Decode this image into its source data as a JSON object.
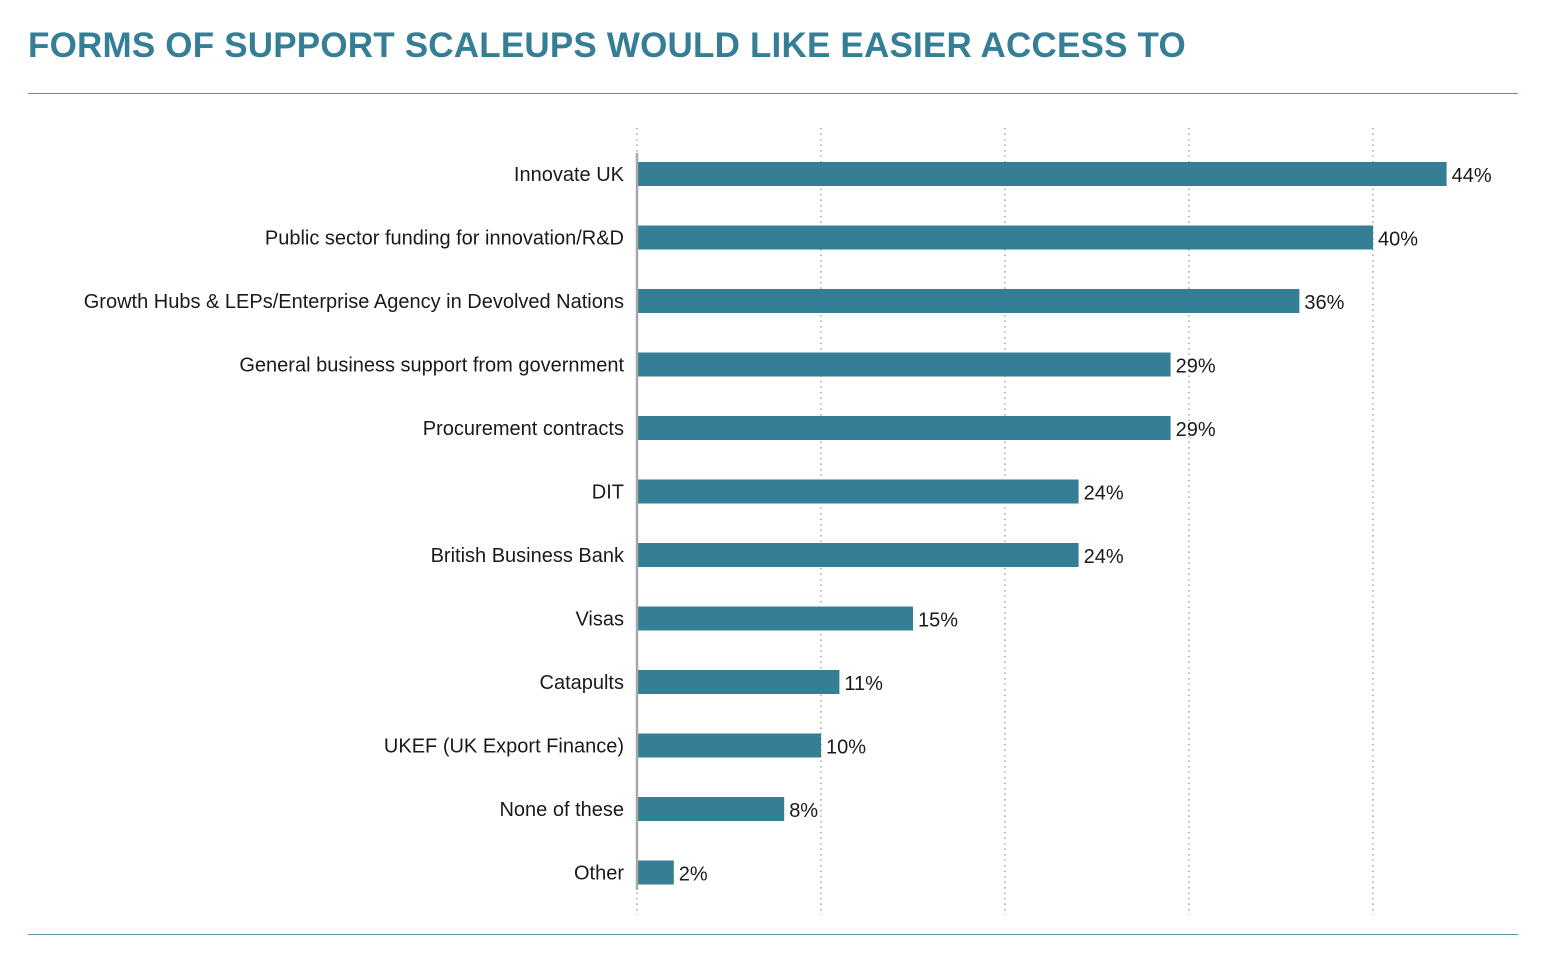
{
  "title": "FORMS OF SUPPORT SCALEUPS WOULD LIKE EASIER ACCESS TO",
  "colors": {
    "accent": "#357f96",
    "bar": "#357f96",
    "rule": "#5b93a6",
    "gridline": "#9a9a9a",
    "axis": "#a8a8a8",
    "text": "#1a1a1a"
  },
  "chart_data": {
    "type": "bar",
    "orientation": "horizontal",
    "categories": [
      "Innovate UK",
      "Public sector funding for innovation/R&D",
      "Growth Hubs & LEPs/Enterprise Agency in Devolved Nations",
      "General business support from government",
      "Procurement contracts",
      "DIT",
      "British Business Bank",
      "Visas",
      "Catapults",
      "UKEF (UK Export Finance)",
      "None of these",
      "Other"
    ],
    "values": [
      44,
      40,
      36,
      29,
      29,
      24,
      24,
      15,
      11,
      10,
      8,
      2
    ],
    "value_labels": [
      "44%",
      "40%",
      "36%",
      "29%",
      "29%",
      "24%",
      "24%",
      "15%",
      "11%",
      "10%",
      "8%",
      "2%"
    ],
    "xlim": [
      0,
      48
    ],
    "gridlines": [
      0,
      10,
      20,
      30,
      40
    ],
    "grid": true,
    "legend": "none"
  }
}
